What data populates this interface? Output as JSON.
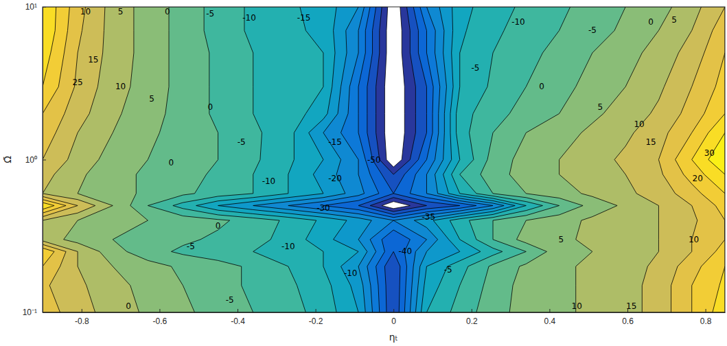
{
  "chart_data": {
    "type": "contour",
    "xlabel": "ηₜ",
    "ylabel": "Ω̄",
    "log": "y",
    "xlim": [
      -0.9,
      0.85
    ],
    "ylim": [
      0.1,
      10
    ],
    "xticks": [
      -0.8,
      -0.6,
      -0.4,
      -0.2,
      0,
      0.2,
      0.4,
      0.6,
      0.8
    ],
    "yticks": [
      {
        "value": 0.1,
        "label": "10⁻¹"
      },
      {
        "value": 1,
        "label": "10⁰"
      },
      {
        "value": 10,
        "label": "10¹"
      }
    ],
    "zlim": [
      -50,
      35
    ],
    "levels": [
      -50,
      -45,
      -40,
      -35,
      -30,
      -25,
      -20,
      -15,
      -10,
      -5,
      0,
      5,
      10,
      15,
      20,
      25,
      30,
      35
    ],
    "x": [
      -0.9,
      -0.81,
      -0.72,
      -0.63,
      -0.54,
      -0.45,
      -0.36,
      -0.27,
      -0.18,
      -0.09,
      0,
      0.085,
      0.17,
      0.255,
      0.34,
      0.425,
      0.51,
      0.595,
      0.68,
      0.765,
      0.85
    ],
    "y": [
      0.1,
      0.15,
      0.2,
      0.25,
      0.3,
      0.4,
      0.5,
      0.6,
      0.8,
      1,
      1.5,
      2,
      3,
      5,
      7,
      10
    ],
    "z": [
      [
        18,
        12,
        8,
        4,
        1,
        -2,
        -5,
        -8,
        -12,
        -20,
        -45,
        -15,
        -8,
        -2,
        2,
        4,
        6,
        8,
        12,
        20,
        28
      ],
      [
        16,
        11,
        7,
        3,
        0,
        -3,
        -6,
        -9,
        -13,
        -22,
        -45,
        -18,
        -10,
        -3,
        2,
        4,
        6,
        8,
        12,
        20,
        26
      ],
      [
        20,
        10,
        5,
        2,
        -1,
        -3,
        -6,
        -10,
        -15,
        -25,
        -45,
        -20,
        -12,
        -4,
        1,
        4,
        6,
        8,
        11,
        18,
        25
      ],
      [
        25,
        10,
        2,
        -3,
        -6,
        -8,
        -10,
        -12,
        -15,
        -20,
        -40,
        -25,
        -20,
        -12,
        -5,
        3,
        5,
        7,
        10,
        15,
        22
      ],
      [
        8,
        3,
        0,
        -2,
        -4,
        -6,
        -8,
        -12,
        -18,
        -25,
        -40,
        -30,
        -15,
        -5,
        2,
        4,
        6,
        8,
        10,
        15,
        20
      ],
      [
        10,
        5,
        2,
        0,
        -2,
        -4,
        -7,
        -11,
        -16,
        -22,
        -30,
        -22,
        -12,
        -5,
        0,
        3,
        6,
        8,
        10,
        14,
        20
      ],
      [
        30,
        15,
        5,
        -5,
        -12,
        -20,
        -25,
        -30,
        -35,
        -40,
        -55,
        -45,
        -40,
        -30,
        -15,
        -5,
        2,
        6,
        10,
        15,
        22
      ],
      [
        10,
        5,
        2,
        -1,
        -4,
        -7,
        -10,
        -15,
        -20,
        -28,
        -40,
        -30,
        -15,
        -5,
        0,
        3,
        6,
        9,
        12,
        18,
        25
      ],
      [
        12,
        6,
        2,
        -1,
        -3,
        -6,
        -10,
        -15,
        -22,
        -30,
        -45,
        -30,
        -10,
        -2,
        2,
        5,
        7,
        10,
        14,
        22,
        30
      ],
      [
        15,
        8,
        3,
        0,
        -2,
        -5,
        -9,
        -14,
        -20,
        -30,
        -55,
        -35,
        -15,
        -3,
        2,
        5,
        8,
        11,
        15,
        25,
        35
      ],
      [
        18,
        10,
        5,
        1,
        -2,
        -5,
        -9,
        -13,
        -25,
        -35,
        -55,
        -40,
        -12,
        -5,
        0,
        3,
        6,
        9,
        13,
        20,
        30
      ],
      [
        20,
        12,
        6,
        2,
        -2,
        -6,
        -10,
        -12,
        -18,
        -35,
        -55,
        -40,
        -12,
        -7,
        -3,
        0,
        4,
        7,
        11,
        17,
        25
      ],
      [
        25,
        14,
        7,
        3,
        -2,
        -6,
        -10,
        -13,
        -15,
        -35,
        -55,
        -40,
        -15,
        -9,
        -5,
        -2,
        2,
        5,
        9,
        15,
        22
      ],
      [
        28,
        15,
        8,
        3,
        -2,
        -6,
        -10,
        -13,
        -15,
        -30,
        -55,
        -35,
        -15,
        -10,
        -7,
        -3,
        0,
        3,
        7,
        12,
        20
      ],
      [
        30,
        16,
        8,
        3,
        -2,
        -7,
        -11,
        -14,
        -16,
        -30,
        -55,
        -35,
        -16,
        -11,
        -8,
        -5,
        -2,
        1,
        5,
        10,
        18
      ],
      [
        30,
        17,
        8,
        3,
        -2,
        -7,
        -11,
        -14,
        -17,
        -25,
        -55,
        -30,
        -17,
        -12,
        -9,
        -6,
        -3,
        0,
        3,
        8,
        15
      ]
    ],
    "contour_labels": [
      {
        "x": -0.79,
        "y": 9.3,
        "value": 10
      },
      {
        "x": -0.7,
        "y": 9.3,
        "value": 5
      },
      {
        "x": -0.58,
        "y": 9.3,
        "value": 0
      },
      {
        "x": -0.47,
        "y": 9.0,
        "value": -5
      },
      {
        "x": -0.37,
        "y": 8.5,
        "value": -10
      },
      {
        "x": -0.23,
        "y": 8.5,
        "value": -15
      },
      {
        "x": 0.32,
        "y": 8,
        "value": -10
      },
      {
        "x": 0.51,
        "y": 7,
        "value": -5
      },
      {
        "x": 0.66,
        "y": 8,
        "value": 0
      },
      {
        "x": 0.72,
        "y": 8.2,
        "value": 5
      },
      {
        "x": -0.77,
        "y": 4.5,
        "value": 15
      },
      {
        "x": -0.81,
        "y": 3.2,
        "value": 25
      },
      {
        "x": -0.7,
        "y": 3,
        "value": 10
      },
      {
        "x": -0.62,
        "y": 2.5,
        "value": 5
      },
      {
        "x": -0.47,
        "y": 2.2,
        "value": 0
      },
      {
        "x": -0.39,
        "y": 1.3,
        "value": -5
      },
      {
        "x": -0.15,
        "y": 1.3,
        "value": -15
      },
      {
        "x": -0.32,
        "y": 0.72,
        "value": -10
      },
      {
        "x": 0.21,
        "y": 4,
        "value": -5
      },
      {
        "x": 0.38,
        "y": 3.0,
        "value": 0
      },
      {
        "x": 0.53,
        "y": 2.2,
        "value": 5
      },
      {
        "x": 0.63,
        "y": 1.7,
        "value": 10
      },
      {
        "x": 0.66,
        "y": 1.3,
        "value": 15
      },
      {
        "x": 0.81,
        "y": 1.1,
        "value": 30
      },
      {
        "x": 0.78,
        "y": 0.75,
        "value": 20
      },
      {
        "x": -0.57,
        "y": 0.95,
        "value": 0
      },
      {
        "x": -0.45,
        "y": 0.37,
        "value": 0
      },
      {
        "x": -0.52,
        "y": 0.27,
        "value": -5
      },
      {
        "x": -0.27,
        "y": 0.27,
        "value": -10
      },
      {
        "x": -0.11,
        "y": 0.18,
        "value": -10
      },
      {
        "x": -0.42,
        "y": 0.12,
        "value": -5
      },
      {
        "x": -0.68,
        "y": 0.11,
        "value": 0
      },
      {
        "x": 0.43,
        "y": 0.3,
        "value": 5
      },
      {
        "x": 0.47,
        "y": 0.11,
        "value": 10
      },
      {
        "x": 0.61,
        "y": 0.11,
        "value": 15
      },
      {
        "x": 0.77,
        "y": 0.3,
        "value": 10
      },
      {
        "x": 0.03,
        "y": 0.25,
        "value": -40
      },
      {
        "x": -0.18,
        "y": 0.48,
        "value": -30
      },
      {
        "x": -0.05,
        "y": 1.0,
        "value": -50
      },
      {
        "x": 0.14,
        "y": 0.19,
        "value": -5
      },
      {
        "x": -0.15,
        "y": 0.75,
        "value": -20
      },
      {
        "x": 0.09,
        "y": 0.42,
        "value": -35
      }
    ]
  }
}
